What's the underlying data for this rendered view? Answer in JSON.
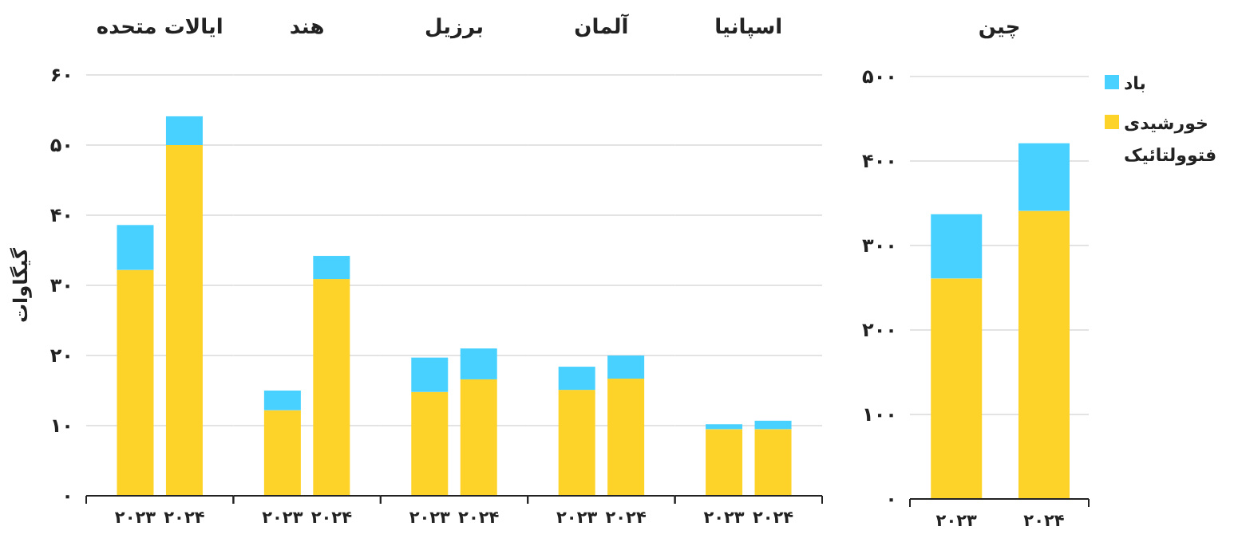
{
  "chart_data": [
    {
      "type": "bar",
      "title": "ایالات متحده",
      "ylabel": "گیگاوات",
      "categories": [
        "۲۰۲۳",
        "۲۰۲۴"
      ],
      "stacked": true,
      "grid": "y",
      "ylim": [
        0,
        60
      ],
      "yticks": [
        {
          "value": 0,
          "label": "۰"
        },
        {
          "value": 10,
          "label": "۱۰"
        },
        {
          "value": 20,
          "label": "۲۰"
        },
        {
          "value": 30,
          "label": "۳۰"
        },
        {
          "value": 40,
          "label": "۴۰"
        },
        {
          "value": 50,
          "label": "۵۰"
        },
        {
          "value": 60,
          "label": "۶۰"
        }
      ],
      "series": [
        {
          "color": "#fdd329",
          "values": [
            32.2,
            50.0
          ]
        },
        {
          "color": "#48d1ff",
          "values": [
            6.4,
            4.1
          ]
        }
      ]
    },
    {
      "type": "bar",
      "title": "هند",
      "categories": [
        "۲۰۲۳",
        "۲۰۲۴"
      ],
      "stacked": true,
      "grid": "y",
      "tick_labels": "x",
      "ylim": [
        0,
        60
      ],
      "yticks": [
        0,
        10,
        20,
        30,
        40,
        50,
        60
      ],
      "series": [
        {
          "color": "#fdd329",
          "values": [
            12.2,
            30.9
          ]
        },
        {
          "color": "#48d1ff",
          "values": [
            2.8,
            3.3
          ]
        }
      ]
    },
    {
      "type": "bar",
      "title": "برزیل",
      "categories": [
        "۲۰۲۳",
        "۲۰۲۴"
      ],
      "stacked": true,
      "grid": "y",
      "tick_labels": "x",
      "ylim": [
        0,
        60
      ],
      "yticks": [
        0,
        10,
        20,
        30,
        40,
        50,
        60
      ],
      "series": [
        {
          "color": "#fdd329",
          "values": [
            14.8,
            16.6
          ]
        },
        {
          "color": "#48d1ff",
          "values": [
            4.9,
            4.4
          ]
        }
      ]
    },
    {
      "type": "bar",
      "title": "آلمان",
      "categories": [
        "۲۰۲۳",
        "۲۰۲۴"
      ],
      "stacked": true,
      "grid": "y",
      "tick_labels": "x",
      "ylim": [
        0,
        60
      ],
      "yticks": [
        0,
        10,
        20,
        30,
        40,
        50,
        60
      ],
      "series": [
        {
          "color": "#fdd329",
          "values": [
            15.1,
            16.7
          ]
        },
        {
          "color": "#48d1ff",
          "values": [
            3.3,
            3.3
          ]
        }
      ]
    },
    {
      "type": "bar",
      "title": "اسپانیا",
      "categories": [
        "۲۰۲۳",
        "۲۰۲۴"
      ],
      "stacked": true,
      "grid": "y",
      "tick_labels": "x",
      "ylim": [
        0,
        60
      ],
      "yticks": [
        0,
        10,
        20,
        30,
        40,
        50,
        60
      ],
      "series": [
        {
          "color": "#fdd329",
          "values": [
            9.5,
            9.5
          ]
        },
        {
          "color": "#48d1ff",
          "values": [
            0.7,
            1.2
          ]
        }
      ]
    },
    {
      "type": "bar",
      "title": "چین",
      "categories": [
        "۲۰۲۳",
        "۲۰۲۴"
      ],
      "stacked": true,
      "grid": "y",
      "legend": "right",
      "ylim": [
        0,
        500
      ],
      "yticks": [
        {
          "value": 0,
          "label": "۰"
        },
        {
          "value": 100,
          "label": "۱۰۰"
        },
        {
          "value": 200,
          "label": "۲۰۰"
        },
        {
          "value": 300,
          "label": "۳۰۰"
        },
        {
          "value": 400,
          "label": "۴۰۰"
        },
        {
          "value": 500,
          "label": "۵۰۰"
        }
      ],
      "series": [
        {
          "name": "خورشیدی فتوولتائیک",
          "color": "#fdd329",
          "values": [
            261,
            341
          ]
        },
        {
          "name": "باد",
          "color": "#48d1ff",
          "values": [
            76,
            80
          ]
        }
      ]
    }
  ]
}
